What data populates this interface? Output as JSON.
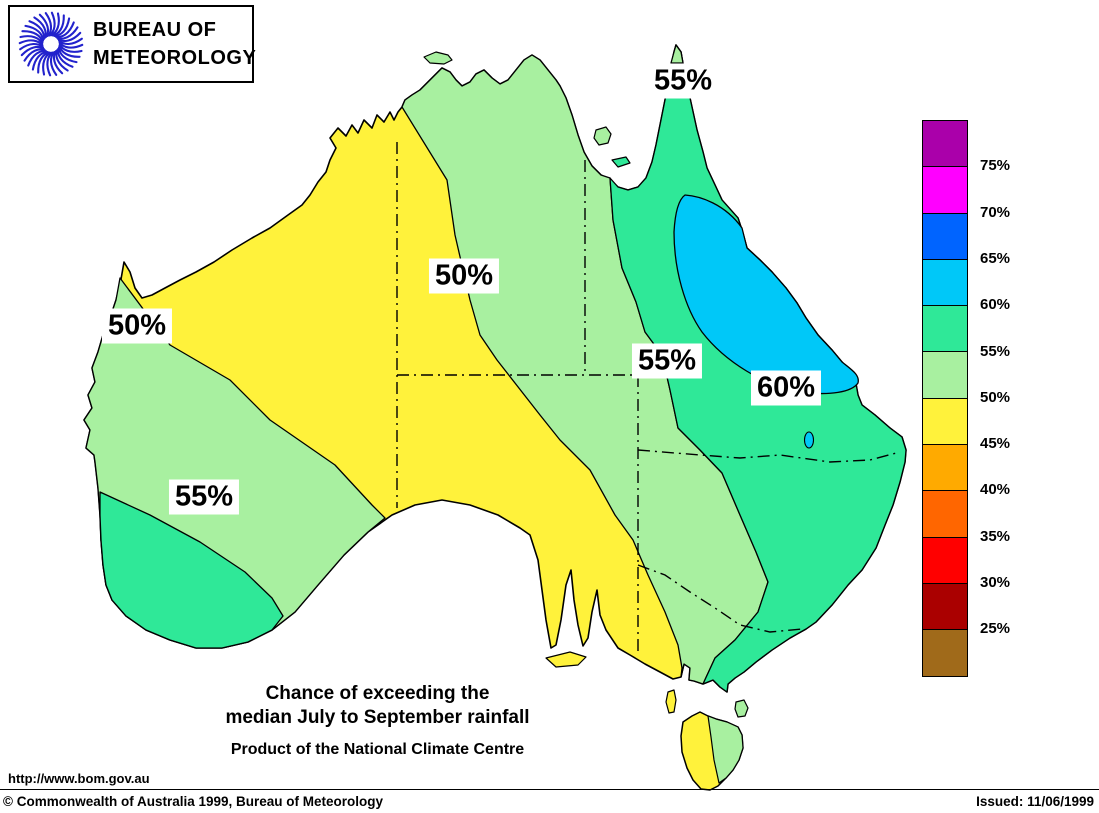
{
  "logo": {
    "org_line1": "BUREAU OF",
    "org_line2": "METEOROLOGY"
  },
  "map": {
    "labels": [
      {
        "text": "55%"
      },
      {
        "text": "50%"
      },
      {
        "text": "50%"
      },
      {
        "text": "55%"
      },
      {
        "text": "60%"
      },
      {
        "text": "55%"
      }
    ],
    "regions": [
      {
        "range": "45-50%",
        "color_key": "yellow"
      },
      {
        "range": "50-55%",
        "color_key": "light_green"
      },
      {
        "range": "55-60%",
        "color_key": "spring_green"
      },
      {
        "range": "60-65%",
        "color_key": "cyan"
      }
    ]
  },
  "legend": {
    "colors": [
      "#AA00AA",
      "#FF00FF",
      "#0064FF",
      "#00C8F8",
      "#2FE898",
      "#A8F0A0",
      "#FFF23B",
      "#FFAA00",
      "#FF6600",
      "#FF0000",
      "#AA0000",
      "#A06A1A"
    ],
    "labels": [
      "75%",
      "70%",
      "65%",
      "60%",
      "55%",
      "50%",
      "45%",
      "40%",
      "35%",
      "30%",
      "25%"
    ]
  },
  "caption": {
    "line1": "Chance of exceeding the",
    "line2": "median July to September rainfall",
    "line3": "Product of the National Climate Centre"
  },
  "footer": {
    "url": "http://www.bom.gov.au",
    "copyright": "© Commonwealth of Australia 1999, Bureau of Meteorology",
    "issued": "Issued: 11/06/1999"
  },
  "colors": {
    "yellow": "#FFF23B",
    "light_green": "#A8F0A0",
    "spring_green": "#2FE898",
    "cyan": "#00C8F8",
    "logo_blue": "#2222CC"
  }
}
